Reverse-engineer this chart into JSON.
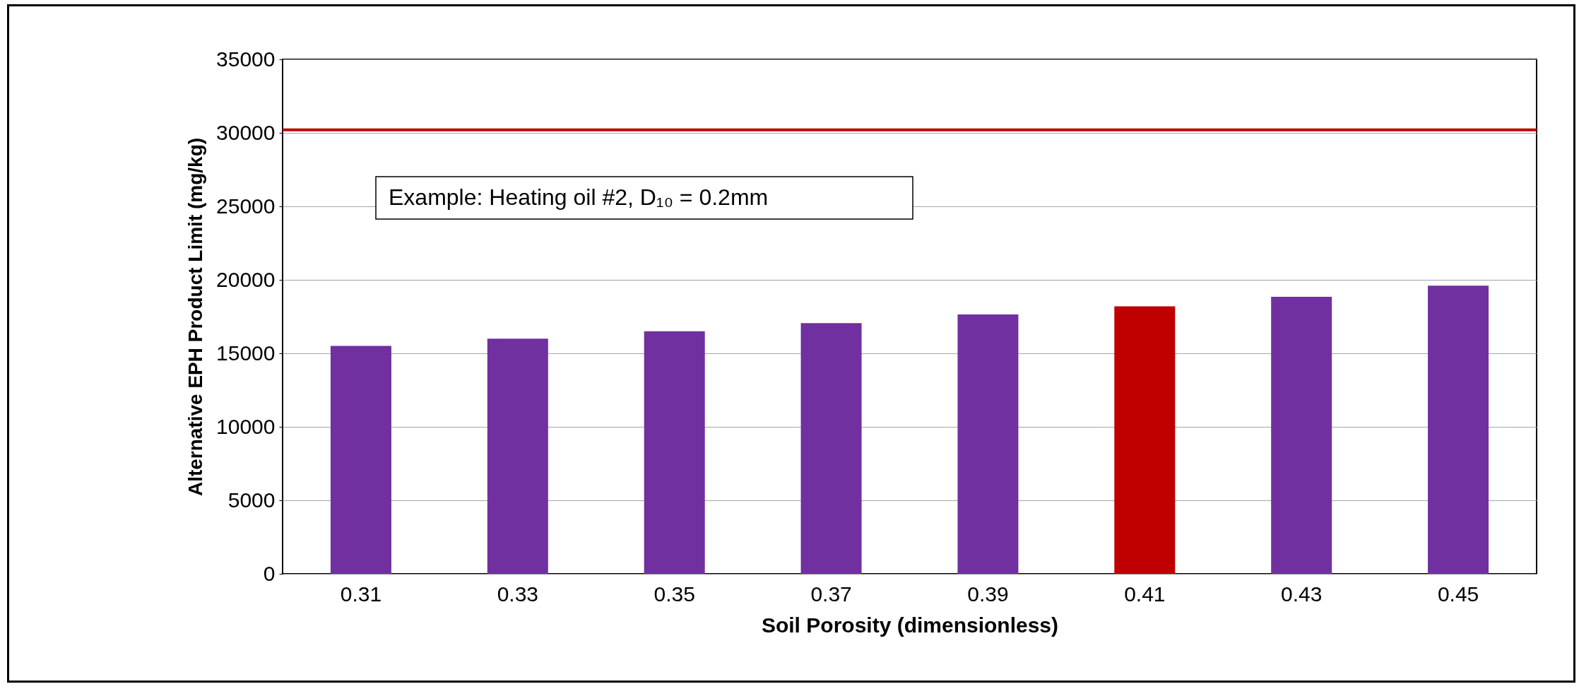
{
  "chart_data": {
    "type": "bar",
    "xlabel": "Soil Porosity (dimensionless)",
    "ylabel": "Alternative EPH Product Limit (mg/kg)",
    "categories": [
      "0.31",
      "0.33",
      "0.35",
      "0.37",
      "0.39",
      "0.41",
      "0.43",
      "0.45"
    ],
    "values": [
      15500,
      16000,
      16500,
      17050,
      17650,
      18200,
      18850,
      19600
    ],
    "colors": [
      "#7030a0",
      "#7030a0",
      "#7030a0",
      "#7030a0",
      "#7030a0",
      "#c00000",
      "#7030a0",
      "#7030a0"
    ],
    "ylim": [
      0,
      35000
    ],
    "yticks": [
      0,
      5000,
      10000,
      15000,
      20000,
      25000,
      30000,
      35000
    ],
    "grid": "y",
    "ref_lines": [
      {
        "axis": "y",
        "value": 30200,
        "color": "#c00000"
      }
    ],
    "annotations": [
      "Example: Heating oil #2, D₁₀ = 0.2mm"
    ]
  }
}
